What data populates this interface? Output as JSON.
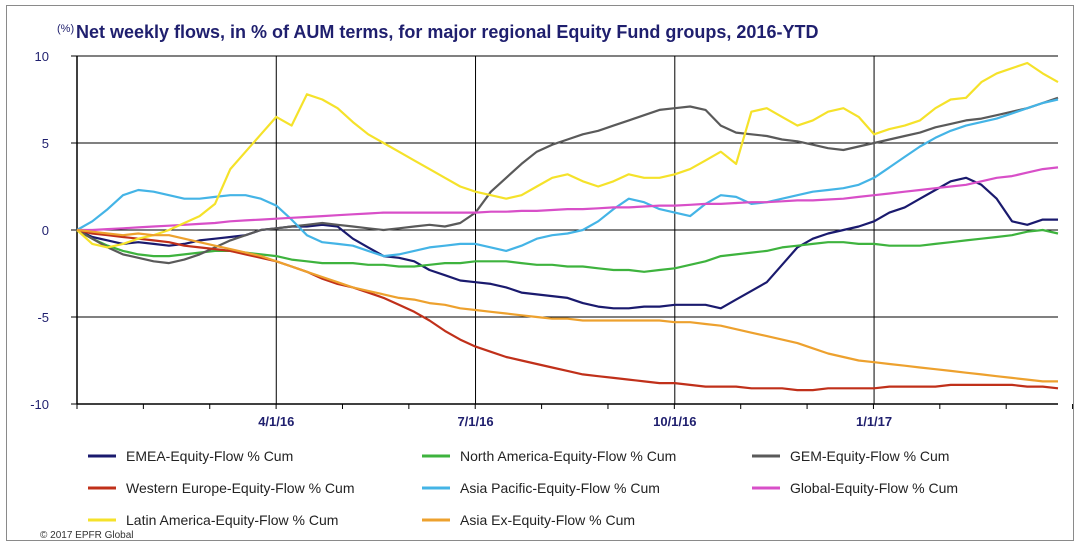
{
  "chart_data": {
    "type": "line",
    "title_unit": "(%)",
    "title": "Net weekly flows, in % of AUM terms, for major regional Equity Fund groups, 2016-YTD",
    "xlabel": "",
    "ylabel": "",
    "ylim": [
      -10,
      10
    ],
    "y_ticks": [
      "10",
      "5",
      "0",
      "-5",
      "-10"
    ],
    "x_ticks": [
      "4/1/16",
      "7/1/16",
      "10/1/16",
      "1/1/17"
    ],
    "x_tick_weeks": [
      13,
      26,
      39,
      52
    ],
    "n_weeks": 65,
    "grid": "vertical and horizontal at ticks",
    "legend_position": "bottom",
    "series": [
      {
        "name": "EMEA-Equity-Flow % Cum",
        "color": "#1a1a6e",
        "values": [
          0,
          -0.4,
          -0.6,
          -0.8,
          -0.7,
          -0.8,
          -0.9,
          -0.8,
          -0.6,
          -0.5,
          -0.4,
          -0.3,
          0,
          0.1,
          0.2,
          0.2,
          0.3,
          0.2,
          -0.5,
          -1,
          -1.5,
          -1.6,
          -1.8,
          -2.3,
          -2.6,
          -2.9,
          -3.0,
          -3.1,
          -3.3,
          -3.6,
          -3.7,
          -3.8,
          -3.9,
          -4.2,
          -4.4,
          -4.5,
          -4.5,
          -4.4,
          -4.4,
          -4.3,
          -4.3,
          -4.3,
          -4.5,
          -4.0,
          -3.5,
          -3.0,
          -2.0,
          -1.0,
          -0.5,
          -0.2,
          0,
          0.2,
          0.5,
          1.0,
          1.3,
          1.8,
          2.3,
          2.8,
          3.0,
          2.6,
          1.8,
          0.5,
          0.3,
          0.6,
          0.6
        ]
      },
      {
        "name": "North America-Equity-Flow % Cum",
        "color": "#3eb33e",
        "values": [
          0,
          -0.5,
          -0.9,
          -1.2,
          -1.4,
          -1.5,
          -1.5,
          -1.4,
          -1.3,
          -1.2,
          -1.2,
          -1.3,
          -1.4,
          -1.5,
          -1.7,
          -1.8,
          -1.9,
          -1.9,
          -1.9,
          -2.0,
          -2.0,
          -2.1,
          -2.1,
          -2.0,
          -1.9,
          -1.9,
          -1.8,
          -1.8,
          -1.8,
          -1.9,
          -2.0,
          -2.0,
          -2.1,
          -2.1,
          -2.2,
          -2.3,
          -2.3,
          -2.4,
          -2.3,
          -2.2,
          -2.0,
          -1.8,
          -1.5,
          -1.4,
          -1.3,
          -1.2,
          -1.0,
          -0.9,
          -0.8,
          -0.7,
          -0.7,
          -0.8,
          -0.8,
          -0.9,
          -0.9,
          -0.9,
          -0.8,
          -0.7,
          -0.6,
          -0.5,
          -0.4,
          -0.3,
          -0.1,
          0,
          -0.2
        ]
      },
      {
        "name": "GEM-Equity-Flow % Cum",
        "color": "#5a5a5a",
        "values": [
          0,
          -0.5,
          -1.0,
          -1.4,
          -1.6,
          -1.8,
          -1.9,
          -1.7,
          -1.4,
          -1.0,
          -0.6,
          -0.3,
          0,
          0.1,
          0.2,
          0.3,
          0.4,
          0.3,
          0.2,
          0.1,
          0,
          0.1,
          0.2,
          0.3,
          0.2,
          0.4,
          1.0,
          2.2,
          3.0,
          3.8,
          4.5,
          4.9,
          5.2,
          5.5,
          5.7,
          6.0,
          6.3,
          6.6,
          6.9,
          7.0,
          7.1,
          6.9,
          6.0,
          5.6,
          5.5,
          5.4,
          5.2,
          5.1,
          4.9,
          4.7,
          4.6,
          4.8,
          5.0,
          5.2,
          5.4,
          5.6,
          5.9,
          6.1,
          6.3,
          6.4,
          6.6,
          6.8,
          7.0,
          7.3,
          7.6
        ]
      },
      {
        "name": "Western Europe-Equity-Flow % Cum",
        "color": "#c0301a",
        "values": [
          0,
          -0.2,
          -0.3,
          -0.4,
          -0.5,
          -0.6,
          -0.7,
          -0.9,
          -1.0,
          -1.1,
          -1.2,
          -1.4,
          -1.6,
          -1.8,
          -2.1,
          -2.4,
          -2.8,
          -3.1,
          -3.3,
          -3.6,
          -3.9,
          -4.3,
          -4.7,
          -5.2,
          -5.8,
          -6.3,
          -6.7,
          -7.0,
          -7.3,
          -7.5,
          -7.7,
          -7.9,
          -8.1,
          -8.3,
          -8.4,
          -8.5,
          -8.6,
          -8.7,
          -8.8,
          -8.8,
          -8.9,
          -9.0,
          -9.0,
          -9.0,
          -9.1,
          -9.1,
          -9.1,
          -9.2,
          -9.2,
          -9.1,
          -9.1,
          -9.1,
          -9.1,
          -9.0,
          -9.0,
          -9.0,
          -9.0,
          -8.9,
          -8.9,
          -8.9,
          -8.9,
          -8.9,
          -9.0,
          -9.0,
          -9.1
        ]
      },
      {
        "name": "Asia Pacific-Equity-Flow % Cum",
        "color": "#44b4e6",
        "values": [
          0,
          0.5,
          1.2,
          2.0,
          2.3,
          2.2,
          2.0,
          1.8,
          1.8,
          1.9,
          2.0,
          2.0,
          1.8,
          1.4,
          0.6,
          -0.3,
          -0.7,
          -0.8,
          -0.9,
          -1.2,
          -1.5,
          -1.4,
          -1.2,
          -1.0,
          -0.9,
          -0.8,
          -0.8,
          -1.0,
          -1.2,
          -0.9,
          -0.5,
          -0.3,
          -0.2,
          0,
          0.5,
          1.2,
          1.8,
          1.6,
          1.2,
          1.0,
          0.8,
          1.5,
          2.0,
          1.9,
          1.5,
          1.6,
          1.8,
          2.0,
          2.2,
          2.3,
          2.4,
          2.6,
          3.0,
          3.6,
          4.2,
          4.8,
          5.3,
          5.7,
          6.0,
          6.2,
          6.4,
          6.7,
          7.0,
          7.3,
          7.5
        ]
      },
      {
        "name": "Global-Equity-Flow % Cum",
        "color": "#d84fc8",
        "values": [
          0,
          0,
          0.05,
          0.1,
          0.15,
          0.2,
          0.25,
          0.3,
          0.35,
          0.4,
          0.5,
          0.55,
          0.6,
          0.65,
          0.7,
          0.75,
          0.8,
          0.85,
          0.9,
          0.95,
          1.0,
          1.0,
          1.0,
          1.0,
          1.0,
          1.0,
          1.0,
          1.05,
          1.05,
          1.1,
          1.1,
          1.15,
          1.2,
          1.2,
          1.25,
          1.3,
          1.3,
          1.35,
          1.4,
          1.4,
          1.45,
          1.5,
          1.5,
          1.55,
          1.6,
          1.6,
          1.65,
          1.7,
          1.7,
          1.75,
          1.8,
          1.9,
          2.0,
          2.1,
          2.2,
          2.3,
          2.4,
          2.5,
          2.6,
          2.8,
          3.0,
          3.1,
          3.3,
          3.5,
          3.6
        ]
      },
      {
        "name": "Latin America-Equity-Flow % Cum",
        "color": "#f5e22a",
        "values": [
          0,
          -0.8,
          -1.0,
          -0.8,
          -0.5,
          -0.3,
          0,
          0.4,
          0.8,
          1.5,
          3.5,
          4.5,
          5.5,
          6.5,
          6.0,
          7.8,
          7.5,
          7.0,
          6.2,
          5.5,
          5.0,
          4.5,
          4.0,
          3.5,
          3.0,
          2.5,
          2.2,
          2.0,
          1.8,
          2.0,
          2.5,
          3.0,
          3.2,
          2.8,
          2.5,
          2.8,
          3.2,
          3.0,
          3.0,
          3.2,
          3.5,
          4.0,
          4.5,
          3.8,
          6.8,
          7.0,
          6.5,
          6.0,
          6.3,
          6.8,
          7.0,
          6.5,
          5.5,
          5.8,
          6.0,
          6.3,
          7.0,
          7.5,
          7.6,
          8.5,
          9.0,
          9.3,
          9.6,
          9.0,
          8.5
        ]
      },
      {
        "name": "Asia Ex-Equity-Flow % Cum",
        "color": "#eda12e",
        "values": [
          0,
          -0.1,
          -0.2,
          -0.3,
          -0.2,
          -0.3,
          -0.3,
          -0.5,
          -0.7,
          -0.9,
          -1.1,
          -1.3,
          -1.5,
          -1.8,
          -2.1,
          -2.4,
          -2.7,
          -3.0,
          -3.3,
          -3.5,
          -3.7,
          -3.9,
          -4.0,
          -4.2,
          -4.3,
          -4.5,
          -4.6,
          -4.7,
          -4.8,
          -4.9,
          -5.0,
          -5.1,
          -5.1,
          -5.2,
          -5.2,
          -5.2,
          -5.2,
          -5.2,
          -5.2,
          -5.3,
          -5.3,
          -5.4,
          -5.5,
          -5.7,
          -5.9,
          -6.1,
          -6.3,
          -6.5,
          -6.8,
          -7.1,
          -7.3,
          -7.5,
          -7.6,
          -7.7,
          -7.8,
          -7.9,
          -8.0,
          -8.1,
          -8.2,
          -8.3,
          -8.4,
          -8.5,
          -8.6,
          -8.7,
          -8.7
        ]
      }
    ]
  },
  "copyright": "© 2017 EPFR Global"
}
